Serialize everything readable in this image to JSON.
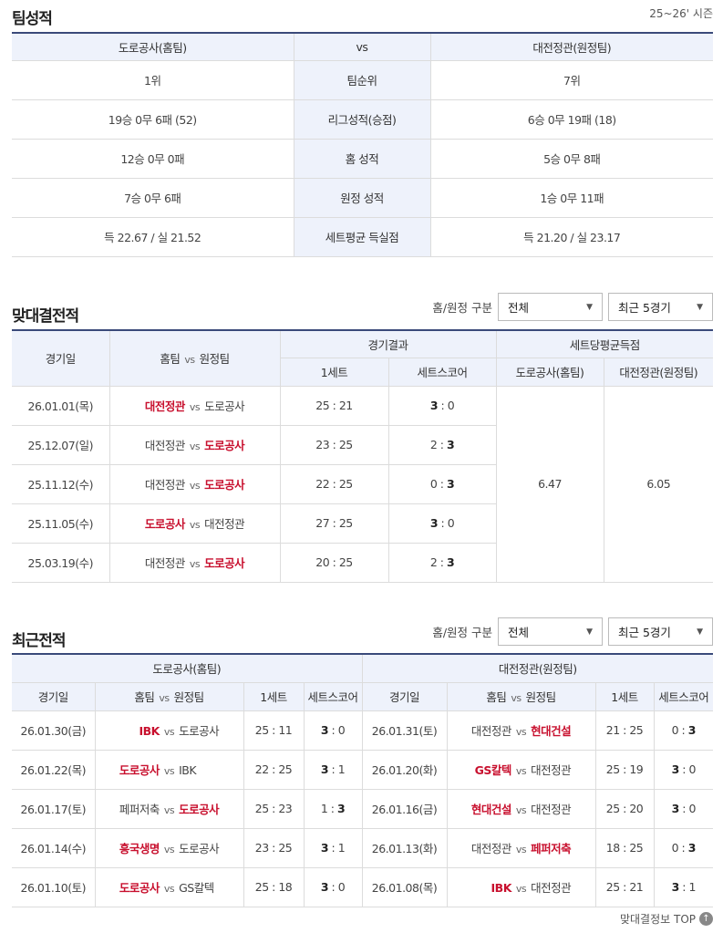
{
  "team_stats": {
    "title": "팀성적",
    "season": "25~26' 시즌",
    "header": {
      "home": "도로공사(홈팀)",
      "vs": "vs",
      "away": "대전정관(원정팀)"
    },
    "rows": [
      {
        "label": "팀순위",
        "home": "1위",
        "away": "7위"
      },
      {
        "label": "리그성적(승점)",
        "home": "19승 0무 6패 (52)",
        "away": "6승 0무 19패 (18)"
      },
      {
        "label": "홈 성적",
        "home": "12승 0무 0패",
        "away": "5승 0무 8패"
      },
      {
        "label": "원정 성적",
        "home": "7승 0무 6패",
        "away": "1승 0무 11패"
      },
      {
        "label": "세트평균 득실점",
        "home": "득 22.67 / 실 21.52",
        "away": "득 21.20 / 실 23.17"
      }
    ]
  },
  "head_to_head": {
    "title": "맞대결전적",
    "filter_label": "홈/원정 구분",
    "filter_value": "전체",
    "range_value": "최근 5경기",
    "headers": {
      "date": "경기일",
      "matchup_home": "홈팀",
      "vs": "vs",
      "matchup_away": "원정팀",
      "result": "경기결과",
      "set1": "1세트",
      "setscore": "세트스코어",
      "avg": "세트당평균득점",
      "avg_home": "도로공사(홈팀)",
      "avg_away": "대전정관(원정팀)"
    },
    "avg_home": "6.47",
    "avg_away": "6.05",
    "rows": [
      {
        "date": "26.01.01(목)",
        "home": "대전정관",
        "away": "도로공사",
        "set1": "25 : 21",
        "score": [
          "3",
          "0"
        ],
        "winner": "home"
      },
      {
        "date": "25.12.07(일)",
        "home": "대전정관",
        "away": "도로공사",
        "set1": "23 : 25",
        "score": [
          "2",
          "3"
        ],
        "winner": "away"
      },
      {
        "date": "25.11.12(수)",
        "home": "대전정관",
        "away": "도로공사",
        "set1": "22 : 25",
        "score": [
          "0",
          "3"
        ],
        "winner": "away"
      },
      {
        "date": "25.11.05(수)",
        "home": "도로공사",
        "away": "대전정관",
        "set1": "27 : 25",
        "score": [
          "3",
          "0"
        ],
        "winner": "home"
      },
      {
        "date": "25.03.19(수)",
        "home": "대전정관",
        "away": "도로공사",
        "set1": "20 : 25",
        "score": [
          "2",
          "3"
        ],
        "winner": "away"
      }
    ]
  },
  "recent": {
    "title": "최근전적",
    "filter_label": "홈/원정 구분",
    "filter_value": "전체",
    "range_value": "최근 5경기",
    "left_team": "도로공사(홈팀)",
    "right_team": "대전정관(원정팀)",
    "headers": {
      "date": "경기일",
      "matchup_home": "홈팀",
      "vs": "vs",
      "matchup_away": "원정팀",
      "set1": "1세트",
      "setscore": "세트스코어"
    },
    "left_rows": [
      {
        "date": "26.01.30(금)",
        "home": "IBK",
        "away": "도로공사",
        "set1": "25 : 11",
        "score": [
          "3",
          "0"
        ],
        "winner": "home"
      },
      {
        "date": "26.01.22(목)",
        "home": "도로공사",
        "away": "IBK",
        "set1": "22 : 25",
        "score": [
          "3",
          "1"
        ],
        "winner": "home"
      },
      {
        "date": "26.01.17(토)",
        "home": "페퍼저축",
        "away": "도로공사",
        "set1": "25 : 23",
        "score": [
          "1",
          "3"
        ],
        "winner": "away"
      },
      {
        "date": "26.01.14(수)",
        "home": "흥국생명",
        "away": "도로공사",
        "set1": "23 : 25",
        "score": [
          "3",
          "1"
        ],
        "winner": "home"
      },
      {
        "date": "26.01.10(토)",
        "home": "도로공사",
        "away": "GS칼텍",
        "set1": "25 : 18",
        "score": [
          "3",
          "0"
        ],
        "winner": "home"
      }
    ],
    "right_rows": [
      {
        "date": "26.01.31(토)",
        "home": "대전정관",
        "away": "현대건설",
        "set1": "21 : 25",
        "score": [
          "0",
          "3"
        ],
        "winner": "away"
      },
      {
        "date": "26.01.20(화)",
        "home": "GS칼텍",
        "away": "대전정관",
        "set1": "25 : 19",
        "score": [
          "3",
          "0"
        ],
        "winner": "home"
      },
      {
        "date": "26.01.16(금)",
        "home": "현대건설",
        "away": "대전정관",
        "set1": "25 : 20",
        "score": [
          "3",
          "0"
        ],
        "winner": "home"
      },
      {
        "date": "26.01.13(화)",
        "home": "대전정관",
        "away": "페퍼저축",
        "set1": "18 : 25",
        "score": [
          "0",
          "3"
        ],
        "winner": "away"
      },
      {
        "date": "26.01.08(목)",
        "home": "IBK",
        "away": "대전정관",
        "set1": "25 : 21",
        "score": [
          "3",
          "1"
        ],
        "winner": "home"
      }
    ]
  },
  "footer": {
    "top_label": "맞대결정보 TOP",
    "icon": "arrow-up-icon"
  },
  "colors": {
    "accent_red": "#c8102e",
    "header_bg": "#eef2fb",
    "top_border": "#3a4a7a"
  }
}
